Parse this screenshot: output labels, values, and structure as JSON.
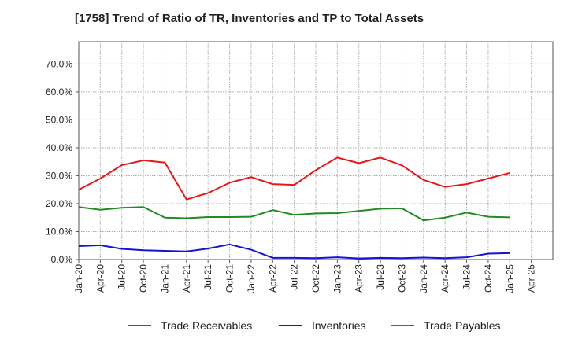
{
  "chart_data": {
    "type": "line",
    "title": "[1758]  Trend of Ratio of TR, Inventories and TP to Total Assets",
    "xlabel": "",
    "ylabel": "",
    "x": [
      "Jan-20",
      "Apr-20",
      "Jul-20",
      "Oct-20",
      "Jan-21",
      "Apr-21",
      "Jul-21",
      "Oct-21",
      "Jan-22",
      "Apr-22",
      "Jul-22",
      "Oct-22",
      "Jan-23",
      "Apr-23",
      "Jul-23",
      "Oct-23",
      "Jan-24",
      "Apr-24",
      "Jul-24",
      "Oct-24",
      "Jan-25"
    ],
    "x_ticks": [
      "Jan-20",
      "Apr-20",
      "Jul-20",
      "Oct-20",
      "Jan-21",
      "Apr-21",
      "Jul-21",
      "Oct-21",
      "Jan-22",
      "Apr-22",
      "Jul-22",
      "Oct-22",
      "Jan-23",
      "Apr-23",
      "Jul-23",
      "Oct-23",
      "Jan-24",
      "Apr-24",
      "Jul-24",
      "Oct-24",
      "Jan-25",
      "Apr-25"
    ],
    "y_ticks": [
      "0.0%",
      "10.0%",
      "20.0%",
      "30.0%",
      "40.0%",
      "50.0%",
      "60.0%",
      "70.0%"
    ],
    "ylim": [
      0,
      78
    ],
    "grid": true,
    "legend_position": "bottom",
    "series": [
      {
        "name": "Trade Receivables",
        "color": "#e31a1c",
        "values": [
          25.0,
          29.0,
          33.8,
          35.5,
          34.7,
          21.5,
          23.8,
          27.5,
          29.5,
          27.0,
          26.7,
          32.0,
          36.5,
          34.5,
          36.5,
          33.7,
          28.5,
          26.0,
          27.0,
          29.0,
          31.0
        ]
      },
      {
        "name": "Inventories",
        "color": "#1515cc",
        "values": [
          4.8,
          5.1,
          3.8,
          3.3,
          3.1,
          2.9,
          3.9,
          5.4,
          3.5,
          0.6,
          0.6,
          0.5,
          0.8,
          0.4,
          0.6,
          0.5,
          0.7,
          0.5,
          0.8,
          2.1,
          2.3
        ]
      },
      {
        "name": "Trade Payables",
        "color": "#228b22",
        "values": [
          18.8,
          17.8,
          18.5,
          18.8,
          15.0,
          14.8,
          15.2,
          15.2,
          15.3,
          17.7,
          16.0,
          16.5,
          16.6,
          17.4,
          18.2,
          18.3,
          14.0,
          15.0,
          16.8,
          15.3,
          15.1
        ]
      }
    ]
  }
}
